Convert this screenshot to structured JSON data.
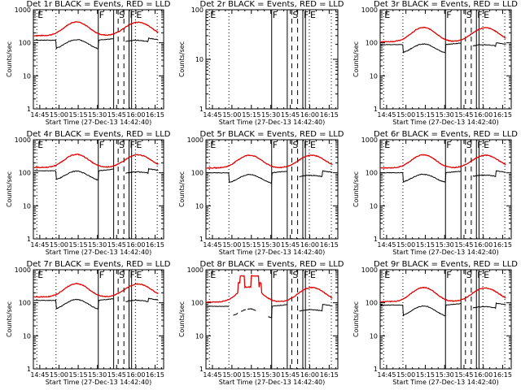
{
  "chart_data": {
    "type": "line",
    "layout": "3x3 grid",
    "common": {
      "xlabel": "Start Time (27-Dec-13 14:42:40)",
      "ylabel": "Counts/sec",
      "yscale": "log",
      "xrange_minutes": [
        -2.67,
        99
      ],
      "x_ticks": [
        "14:45",
        "15:00",
        "15:15",
        "15:30",
        "15:45",
        "16:00",
        "16:15"
      ],
      "x_tick_minutes": [
        2.33,
        17.33,
        32.33,
        47.33,
        62.33,
        77.33,
        92.33
      ],
      "markers": [
        {
          "label": "E",
          "minute": 0,
          "style": "dotted",
          "solid": false
        },
        {
          "label": "",
          "minute": 15,
          "style": "dotted"
        },
        {
          "label": "F",
          "minute": 48,
          "style": "solid"
        },
        {
          "label": "",
          "minute": 60,
          "style": "solid"
        },
        {
          "label": "S",
          "minute": 63.5,
          "style": "dashed"
        },
        {
          "label": "",
          "minute": 68,
          "style": "dashed"
        },
        {
          "label": "F",
          "minute": 72,
          "style": "solid"
        },
        {
          "label": "",
          "minute": 74,
          "style": "solid"
        },
        {
          "label": "E",
          "minute": 77,
          "style": "dotted"
        },
        {
          "label": "",
          "minute": 94,
          "style": "dotted"
        }
      ],
      "series_colors": {
        "events": "#000000",
        "lld": "#e00000"
      }
    },
    "panels": [
      {
        "title": "Det 1r BLACK = Events, RED = LLD",
        "ylim": [
          1,
          1000
        ],
        "y_ticks": [
          "1",
          "10",
          "100",
          "1000"
        ],
        "events_base": 120,
        "events_dip": 60,
        "events_peak": 125,
        "lld_base": 165,
        "lld_peak": 430,
        "lld_peak2": 420
      },
      {
        "title": "Det 2r BLACK = Events, RED = LLD",
        "ylim": [
          1,
          100
        ],
        "y_ticks": [
          "1",
          "10",
          "100"
        ],
        "empty": true
      },
      {
        "title": "Det 3r BLACK = Events, RED = LLD",
        "ylim": [
          1,
          1000
        ],
        "y_ticks": [
          "1",
          "10",
          "100",
          "1000"
        ],
        "events_base": 88,
        "events_dip": 45,
        "events_peak": 92,
        "lld_base": 108,
        "lld_peak": 290,
        "lld_peak2": 285
      },
      {
        "title": "Det 4r BLACK = Events, RED = LLD",
        "ylim": [
          1,
          1000
        ],
        "y_ticks": [
          "1",
          "10",
          "100",
          "1000"
        ],
        "events_base": 115,
        "events_dip": 55,
        "events_peak": 112,
        "lld_base": 145,
        "lld_peak": 360,
        "lld_peak2": 350
      },
      {
        "title": "Det 5r BLACK = Events, RED = LLD",
        "ylim": [
          1,
          1000
        ],
        "y_ticks": [
          "1",
          "10",
          "100",
          "1000"
        ],
        "events_base": 100,
        "events_dip": 45,
        "events_peak": 88,
        "lld_base": 140,
        "lld_peak": 340,
        "lld_peak2": 340
      },
      {
        "title": "Det 6r BLACK = Events, RED = LLD",
        "ylim": [
          1,
          1000
        ],
        "y_ticks": [
          "1",
          "10",
          "100",
          "1000"
        ],
        "events_base": 100,
        "events_dip": 48,
        "events_peak": 90,
        "lld_base": 140,
        "lld_peak": 350,
        "lld_peak2": 340
      },
      {
        "title": "Det 7r BLACK = Events, RED = LLD",
        "ylim": [
          1,
          1000
        ],
        "y_ticks": [
          "1",
          "10",
          "100",
          "1000"
        ],
        "events_base": 118,
        "events_dip": 58,
        "events_peak": 125,
        "lld_base": 150,
        "lld_peak": 380,
        "lld_peak2": 370
      },
      {
        "title": "Det 8r BLACK = Events, RED = LLD",
        "ylim": [
          1,
          1000
        ],
        "y_ticks": [
          "1",
          "10",
          "100",
          "1000"
        ],
        "events_base": 78,
        "events_dip": 32,
        "events_peak": 65,
        "lld_base": 105,
        "lld_peak": 290,
        "lld_peak2": 290,
        "anomaly": true
      },
      {
        "title": "Det 9r BLACK = Events, RED = LLD",
        "ylim": [
          1,
          1000
        ],
        "y_ticks": [
          "1",
          "10",
          "100",
          "1000"
        ],
        "events_base": 85,
        "events_dip": 36,
        "events_peak": 80,
        "lld_base": 108,
        "lld_peak": 290,
        "lld_peak2": 280
      }
    ]
  }
}
